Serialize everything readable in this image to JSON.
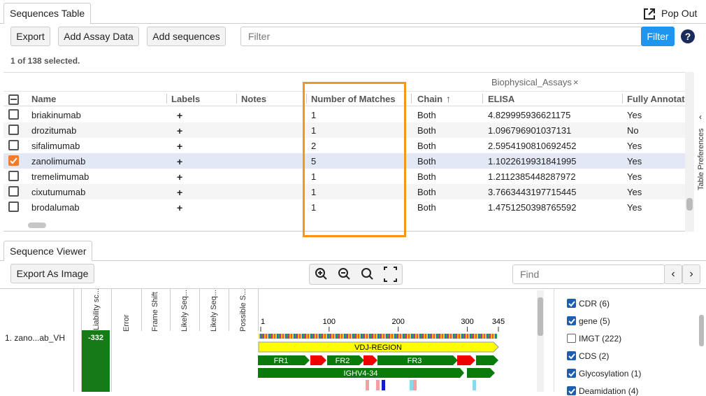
{
  "tabs": {
    "sequences_table": "Sequences Table",
    "pop_out": "Pop Out",
    "sequence_viewer": "Sequence Viewer"
  },
  "toolbar": {
    "export": "Export",
    "add_assay": "Add Assay Data",
    "add_sequences": "Add sequences",
    "filter_placeholder": "Filter",
    "filter_button": "Filter",
    "help": "?"
  },
  "selection_status": "1 of 138 selected.",
  "table": {
    "group_header": "Biophysical_Assays",
    "columns": [
      "Name",
      "Labels",
      "Notes",
      "Number of Matches",
      "Chain",
      "ELISA",
      "Fully Annotated"
    ],
    "rows": [
      {
        "checked": false,
        "name": "briakinumab",
        "labels": "+",
        "matches": "1",
        "chain": "Both",
        "elisa": "4.829995936621175",
        "annotated": "Yes"
      },
      {
        "checked": false,
        "name": "drozitumab",
        "labels": "+",
        "matches": "1",
        "chain": "Both",
        "elisa": "1.096796901037131",
        "annotated": "No"
      },
      {
        "checked": false,
        "name": "sifalimumab",
        "labels": "+",
        "matches": "2",
        "chain": "Both",
        "elisa": "2.5954190810692452",
        "annotated": "Yes"
      },
      {
        "checked": true,
        "name": "zanolimumab",
        "labels": "+",
        "matches": "5",
        "chain": "Both",
        "elisa": "1.1022619931841995",
        "annotated": "Yes"
      },
      {
        "checked": false,
        "name": "tremelimumab",
        "labels": "+",
        "matches": "1",
        "chain": "Both",
        "elisa": "1.2112385448287972",
        "annotated": "Yes"
      },
      {
        "checked": false,
        "name": "cixutumumab",
        "labels": "+",
        "matches": "1",
        "chain": "Both",
        "elisa": "3.7663443197715445",
        "annotated": "Yes"
      },
      {
        "checked": false,
        "name": "brodalumab",
        "labels": "+",
        "matches": "1",
        "chain": "Both",
        "elisa": "1.4751250398765592",
        "annotated": "Yes"
      }
    ],
    "side_label": "Table Preferences"
  },
  "viewer": {
    "export_image": "Export As Image",
    "find_placeholder": "Find",
    "track_headers": [
      "Liability sc...",
      "Error",
      "Frame Shift",
      "Likely Seq...",
      "Likely Seq...",
      "Possible S..."
    ],
    "sequence_name": "1. zano...ab_VH",
    "liability_score": "-332",
    "ruler": [
      1,
      100,
      200,
      300,
      345
    ],
    "annotations": {
      "vdj": "VDJ-REGION",
      "fr1": "FR1",
      "fr2": "FR2",
      "fr3": "FR3",
      "ighv": "IGHV4-34"
    },
    "legend": [
      {
        "label": "CDR (6)",
        "checked": true
      },
      {
        "label": "gene (5)",
        "checked": true
      },
      {
        "label": "IMGT (222)",
        "checked": false
      },
      {
        "label": "CDS (2)",
        "checked": true
      },
      {
        "label": "Glycosylation (1)",
        "checked": true
      },
      {
        "label": "Deamidation (4)",
        "checked": true
      }
    ]
  }
}
